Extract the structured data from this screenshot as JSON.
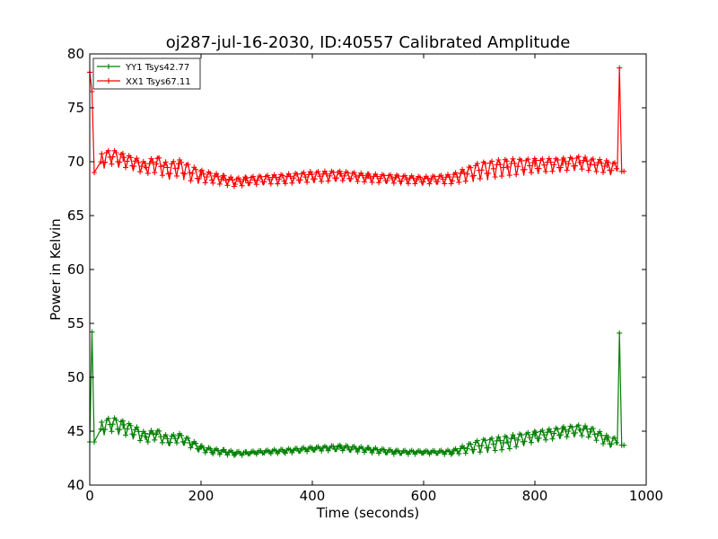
{
  "chart_data": {
    "type": "line",
    "title": "oj287-jul-16-2030, ID:40557 Calibrated Amplitude",
    "xlabel": "Time (seconds)",
    "ylabel": "Power in Kelvin",
    "xlim": [
      0,
      1000
    ],
    "ylim": [
      40,
      80
    ],
    "x_ticks": [
      0,
      200,
      400,
      600,
      800,
      1000
    ],
    "y_ticks": [
      40,
      45,
      50,
      55,
      60,
      65,
      70,
      75,
      80
    ],
    "grid": false,
    "legend_position": "top-left",
    "marker": "plus",
    "series": [
      {
        "name": "YY1 Tsys42.77",
        "color": "#008000",
        "x": [
          0,
          4,
          8,
          20,
          40,
          60,
          80,
          100,
          120,
          140,
          160,
          180,
          200,
          220,
          240,
          260,
          280,
          300,
          350,
          400,
          450,
          500,
          550,
          600,
          650,
          700,
          750,
          800,
          850,
          880,
          900,
          930,
          948,
          952,
          956,
          960
        ],
        "y": [
          44.0,
          54.2,
          44.0,
          45.2,
          45.5,
          45.2,
          44.8,
          44.3,
          44.6,
          44.0,
          44.3,
          43.8,
          43.3,
          43.1,
          43.0,
          42.9,
          42.9,
          43.0,
          43.1,
          43.3,
          43.4,
          43.2,
          43.0,
          43.0,
          43.0,
          43.5,
          43.8,
          44.4,
          44.8,
          45.0,
          44.8,
          44.0,
          43.8,
          54.1,
          43.7,
          43.7
        ],
        "y_spread": [
          0,
          0,
          0,
          1.3,
          1.4,
          1.3,
          1.2,
          1.0,
          1.0,
          0.9,
          0.9,
          0.8,
          0.6,
          0.5,
          0.5,
          0.4,
          0.3,
          0.3,
          0.4,
          0.4,
          0.5,
          0.5,
          0.4,
          0.3,
          0.4,
          1.2,
          1.3,
          1.0,
          1.0,
          1.0,
          1.0,
          1.0,
          0.9,
          0,
          0,
          0
        ]
      },
      {
        "name": "XX1 Tsys67.11",
        "color": "#ff0000",
        "x": [
          0,
          4,
          8,
          20,
          40,
          60,
          80,
          100,
          120,
          140,
          160,
          180,
          200,
          220,
          240,
          260,
          280,
          300,
          350,
          400,
          450,
          500,
          550,
          600,
          650,
          700,
          750,
          800,
          850,
          880,
          900,
          930,
          948,
          952,
          956,
          960
        ],
        "y": [
          78.3,
          76.5,
          69.0,
          70.0,
          70.3,
          70.0,
          69.7,
          69.3,
          69.6,
          69.0,
          69.3,
          68.8,
          68.5,
          68.4,
          68.2,
          68.0,
          68.1,
          68.2,
          68.3,
          68.5,
          68.6,
          68.4,
          68.3,
          68.2,
          68.3,
          69.0,
          69.3,
          69.5,
          69.6,
          69.8,
          69.6,
          69.4,
          69.2,
          78.7,
          69.1,
          69.1
        ],
        "y_spread": [
          0,
          0,
          0,
          1.5,
          1.4,
          1.3,
          1.2,
          1.1,
          1.6,
          1.4,
          1.6,
          1.5,
          1.2,
          1.0,
          0.9,
          0.8,
          0.8,
          0.8,
          0.9,
          1.0,
          0.9,
          0.8,
          0.8,
          0.7,
          0.9,
          1.6,
          1.6,
          1.3,
          1.2,
          1.2,
          1.2,
          1.2,
          1.1,
          0,
          0,
          0
        ]
      }
    ]
  }
}
